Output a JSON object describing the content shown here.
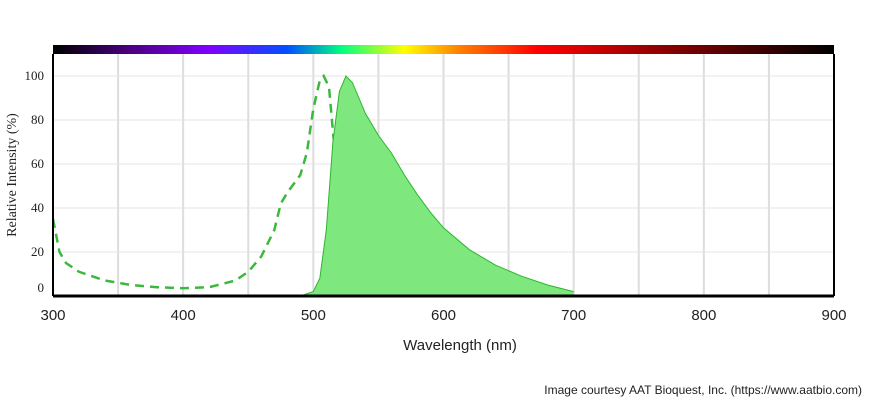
{
  "chart_data": {
    "type": "spectrum",
    "y_label": "Relative Intensity (%)",
    "x_label": "Wavelength (nm)",
    "credit": "Image courtesy AAT Bioquest, Inc. (https://www.aatbio.com)",
    "xlim": [
      300,
      900
    ],
    "xticks": [
      300,
      400,
      500,
      600,
      700,
      800,
      900
    ],
    "xgrid": [
      350,
      450,
      550,
      650,
      750,
      850
    ],
    "ylim": [
      0,
      110
    ],
    "yticks": [
      0,
      20,
      40,
      60,
      80,
      100
    ],
    "grid": true,
    "series": [
      {
        "color": "#3cb83c",
        "style": "dashed",
        "x": [
          300,
          305,
          310,
          320,
          340,
          360,
          380,
          400,
          420,
          440,
          450,
          460,
          470,
          475,
          480,
          490,
          495,
          500,
          505,
          508,
          512,
          515,
          520,
          525,
          530,
          535,
          540,
          550,
          570,
          600
        ],
        "values": [
          35,
          20,
          15,
          11,
          7,
          5,
          4,
          3.5,
          4,
          7,
          11,
          18,
          30,
          42,
          47,
          55,
          65,
          85,
          98,
          100,
          95,
          75,
          45,
          25,
          15,
          8,
          4,
          2,
          1,
          0.5
        ]
      },
      {
        "color": "#2db52d",
        "fill": "#7ee87e",
        "style": "solid",
        "x": [
          490,
          500,
          505,
          510,
          515,
          520,
          525,
          530,
          540,
          550,
          560,
          570,
          580,
          590,
          600,
          620,
          640,
          660,
          680,
          700
        ],
        "values": [
          0,
          2,
          8,
          30,
          70,
          93,
          100,
          97,
          83,
          73,
          65,
          55,
          46,
          38,
          31,
          21,
          14,
          9,
          5,
          2
        ]
      }
    ]
  }
}
